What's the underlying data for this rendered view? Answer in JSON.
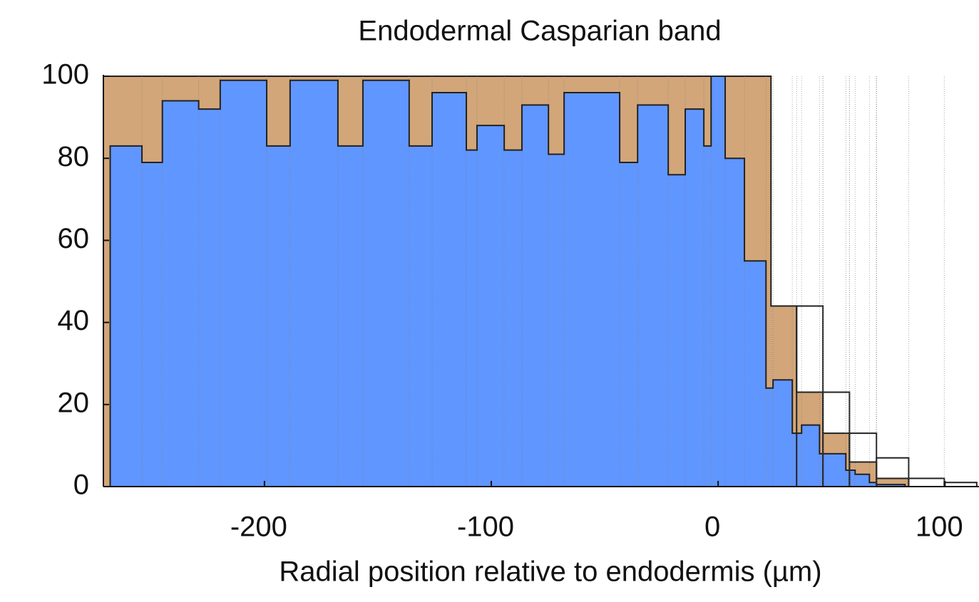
{
  "chart_data": {
    "type": "step",
    "title": "Endodermal Casparian band",
    "xlabel": "Radial position relative to endodermis (µm)",
    "xlim": [
      -271,
      115
    ],
    "ylim": [
      0,
      100
    ],
    "xticks": [
      -200,
      -100,
      0,
      100
    ],
    "yticks": [
      0,
      20,
      40,
      60,
      80,
      100
    ],
    "series": [
      {
        "color": "#d2a679",
        "bins": [
          -271,
          23.3,
          34.6,
          46.2,
          57.9,
          69.8,
          84
        ],
        "values": [
          100,
          44,
          23,
          13,
          6,
          2
        ]
      },
      {
        "color": "#6096ff",
        "bins": [
          -268,
          -254,
          -245,
          -229,
          -219.5,
          -199,
          -188.7,
          -167.6,
          -156.6,
          -136.2,
          -126.1,
          -111,
          -106.3,
          -94.3,
          -86.5,
          -74.8,
          -67.9,
          -43.4,
          -35.5,
          -22,
          -14.5,
          -6.3,
          -3.1,
          3.1,
          11.6,
          21.1,
          24.2,
          32.7,
          36.8,
          44.7,
          56.3,
          60.4,
          66.7,
          69.8,
          82.4
        ],
        "values": [
          83,
          79,
          94,
          92,
          99,
          83,
          99,
          83,
          99,
          83,
          96,
          82,
          88,
          82,
          93,
          81,
          96,
          79,
          93,
          76,
          92,
          83,
          100,
          80,
          55,
          24,
          26,
          13,
          15,
          8,
          4,
          3,
          1,
          0.5
        ]
      },
      {
        "color": "none",
        "bins": [
          34.6,
          46.2,
          57.9,
          69.8,
          84,
          99.7,
          114
        ],
        "values": [
          44,
          23,
          13,
          7,
          2,
          1
        ]
      }
    ]
  }
}
